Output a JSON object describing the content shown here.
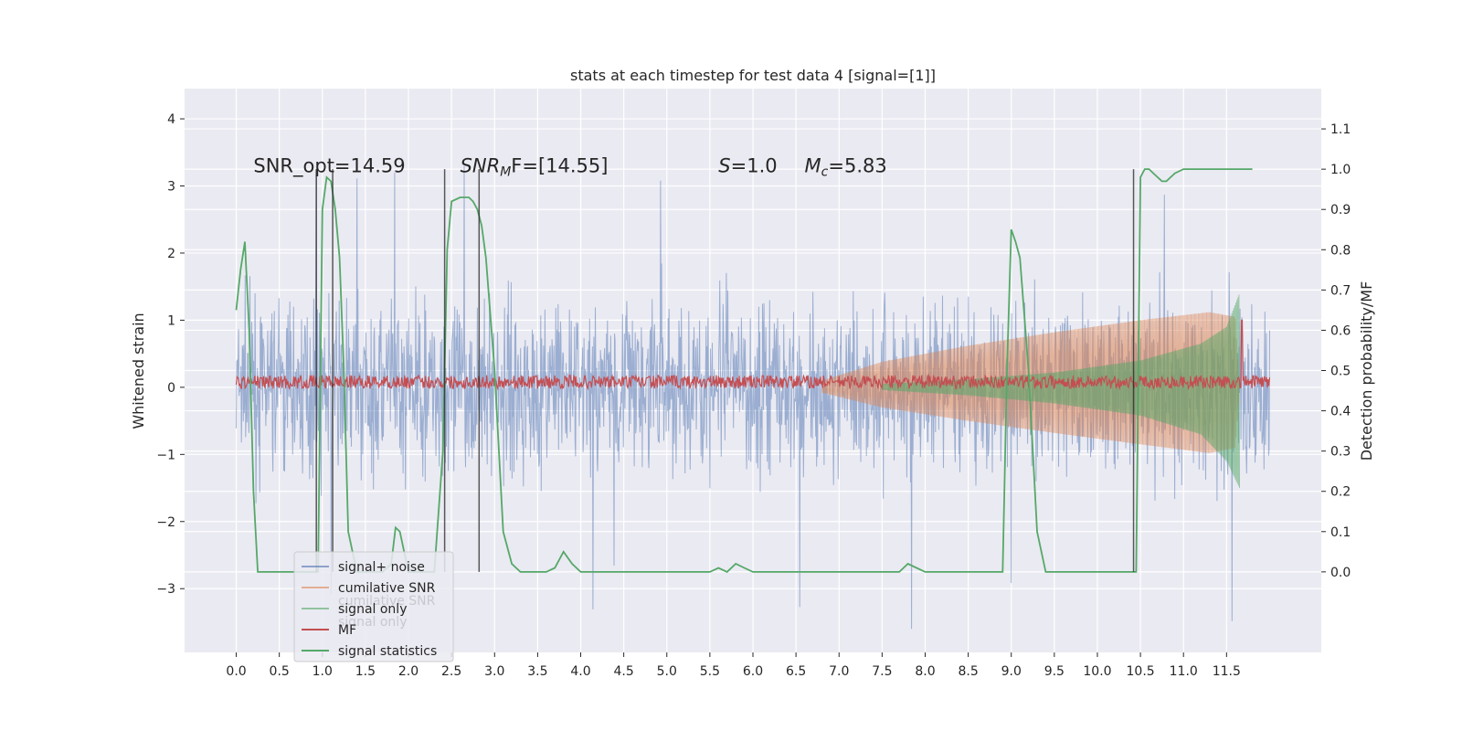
{
  "chart_data": {
    "type": "line",
    "title": "stats at each timestep for test data 4 [signal=[1]]",
    "xlabel": "",
    "ylabel": "Whitened strain",
    "ylabel_right": "Detection probability/MF",
    "xlim": [
      -0.6,
      12.6
    ],
    "ylim": [
      -3.95,
      4.45
    ],
    "ylim_right": [
      -0.2,
      1.2
    ],
    "x_ticks": [
      "0.0",
      "0.5",
      "1.0",
      "1.5",
      "2.0",
      "2.5",
      "3.0",
      "3.5",
      "4.0",
      "4.5",
      "5.0",
      "5.5",
      "6.0",
      "6.5",
      "7.0",
      "7.5",
      "8.0",
      "8.5",
      "9.0",
      "9.5",
      "10.0",
      "10.5",
      "11.0",
      "11.5"
    ],
    "y_ticks_left": [
      "−3",
      "−2",
      "−1",
      "0",
      "1",
      "2",
      "3",
      "4"
    ],
    "y_ticks_right": [
      "0.0",
      "0.1",
      "0.2",
      "0.3",
      "0.4",
      "0.5",
      "0.6",
      "0.7",
      "0.8",
      "0.9",
      "1.0",
      "1.1"
    ],
    "grid": true,
    "annotations": [
      {
        "text": "SNR_opt=14.59",
        "x": 0.2,
        "y": 3.3
      },
      {
        "text": "SNR",
        "sub": "M",
        "rest": "F=[14.55]",
        "x": 2.6,
        "y": 3.3
      },
      {
        "text": "S",
        "rest": "=1.0",
        "x": 5.6,
        "y": 3.3
      },
      {
        "text": "M",
        "sub": "c",
        "rest": "=5.83",
        "x": 6.6,
        "y": 3.3
      }
    ],
    "legend": {
      "placement": "lower-left",
      "entries": [
        {
          "label": "signal+ noise",
          "color": "#4c72b0"
        },
        {
          "label": "cumilative SNR",
          "color": "#dd8452"
        },
        {
          "label": "signal only",
          "color": "#55a868"
        },
        {
          "label": "MF",
          "color": "#c44e52"
        },
        {
          "label": "signal statistics",
          "color": "#55a868"
        }
      ],
      "ghost_labels": [
        "cumilative SNR",
        "signal only"
      ]
    },
    "series": [
      {
        "name": "signal+ noise",
        "color": "#4c72b0",
        "kind": "noise",
        "x_range": [
          0.0,
          12.0
        ],
        "envelope": 1.5,
        "peak_max": 4.1,
        "peak_min": -3.6
      },
      {
        "name": "cumilative SNR",
        "color": "#dd8452",
        "kind": "chirp-envelope",
        "x_start": 6.8,
        "x_end": 11.65,
        "upper": [
          [
            6.8,
            0.1
          ],
          [
            7.5,
            0.38
          ],
          [
            8.5,
            0.62
          ],
          [
            9.5,
            0.82
          ],
          [
            10.5,
            1.0
          ],
          [
            11.3,
            1.12
          ],
          [
            11.6,
            1.05
          ],
          [
            11.65,
            0.0
          ]
        ],
        "lower": [
          [
            6.8,
            -0.08
          ],
          [
            7.5,
            -0.3
          ],
          [
            8.5,
            -0.5
          ],
          [
            9.5,
            -0.68
          ],
          [
            10.5,
            -0.85
          ],
          [
            11.3,
            -0.98
          ],
          [
            11.6,
            -0.9
          ],
          [
            11.65,
            0.0
          ]
        ]
      },
      {
        "name": "signal only",
        "color": "#55a868",
        "kind": "chirp-envelope",
        "x_start": 7.5,
        "x_end": 11.65,
        "upper": [
          [
            7.5,
            0.05
          ],
          [
            8.5,
            0.12
          ],
          [
            9.5,
            0.22
          ],
          [
            10.5,
            0.4
          ],
          [
            11.2,
            0.65
          ],
          [
            11.5,
            0.9
          ],
          [
            11.65,
            1.4
          ],
          [
            11.66,
            0.0
          ]
        ],
        "lower": [
          [
            7.5,
            -0.04
          ],
          [
            8.5,
            -0.12
          ],
          [
            9.5,
            -0.24
          ],
          [
            10.5,
            -0.42
          ],
          [
            11.2,
            -0.7
          ],
          [
            11.5,
            -1.1
          ],
          [
            11.65,
            -1.5
          ],
          [
            11.66,
            0.0
          ]
        ]
      },
      {
        "name": "MF",
        "color": "#c44e52",
        "kind": "noise-band",
        "x_range": [
          0.0,
          12.0
        ],
        "center": 0.08,
        "amp": 0.1,
        "spike_x": 11.68,
        "spike_y": 1.0
      },
      {
        "name": "signal statistics",
        "color": "#55a868",
        "axis": "right",
        "kind": "line",
        "x": [
          0.0,
          0.05,
          0.1,
          0.15,
          0.2,
          0.25,
          0.3,
          0.4,
          0.5,
          0.6,
          0.7,
          0.8,
          0.9,
          0.95,
          1.0,
          1.05,
          1.1,
          1.15,
          1.2,
          1.25,
          1.3,
          1.4,
          1.5,
          1.6,
          1.7,
          1.8,
          1.85,
          1.9,
          1.95,
          2.0,
          2.1,
          2.2,
          2.3,
          2.4,
          2.45,
          2.5,
          2.6,
          2.7,
          2.75,
          2.8,
          2.85,
          2.9,
          3.0,
          3.1,
          3.2,
          3.3,
          3.4,
          3.5,
          3.6,
          3.7,
          3.8,
          3.9,
          4.0,
          4.5,
          5.0,
          5.5,
          5.6,
          5.7,
          5.8,
          5.9,
          6.0,
          6.5,
          6.7,
          6.8,
          7.0,
          7.5,
          7.7,
          7.8,
          7.9,
          8.0,
          8.5,
          8.8,
          8.9,
          8.95,
          9.0,
          9.05,
          9.1,
          9.2,
          9.3,
          9.4,
          9.5,
          10.0,
          10.4,
          10.45,
          10.5,
          10.55,
          10.6,
          10.65,
          10.7,
          10.75,
          10.8,
          10.9,
          11.0,
          11.2,
          11.5,
          11.8
        ],
        "y": [
          0.65,
          0.75,
          0.82,
          0.6,
          0.2,
          0.0,
          0.0,
          0.0,
          0.0,
          0.0,
          0.0,
          0.0,
          0.0,
          0.0,
          0.9,
          0.98,
          0.97,
          0.9,
          0.78,
          0.5,
          0.1,
          0.0,
          0.0,
          0.0,
          0.0,
          0.02,
          0.11,
          0.1,
          0.05,
          0.0,
          0.0,
          0.0,
          0.0,
          0.3,
          0.8,
          0.92,
          0.93,
          0.93,
          0.92,
          0.9,
          0.86,
          0.78,
          0.5,
          0.1,
          0.02,
          0.0,
          0.0,
          0.0,
          0.0,
          0.01,
          0.05,
          0.02,
          0.0,
          0.0,
          0.0,
          0.0,
          0.01,
          0.0,
          0.02,
          0.01,
          0.0,
          0.0,
          0.0,
          0.0,
          0.0,
          0.0,
          0.0,
          0.02,
          0.01,
          0.0,
          0.0,
          0.0,
          0.0,
          0.5,
          0.85,
          0.82,
          0.78,
          0.5,
          0.1,
          0.0,
          0.0,
          0.0,
          0.0,
          0.0,
          0.98,
          1.0,
          1.0,
          0.99,
          0.98,
          0.97,
          0.97,
          0.99,
          1.0,
          1.0,
          1.0,
          1.0
        ]
      },
      {
        "name": "",
        "color": "#262626",
        "kind": "vlines",
        "axis": "right",
        "x": [
          0.93,
          1.12,
          2.42,
          2.82,
          10.42
        ],
        "y0": 0.0,
        "y1": 1.0
      }
    ]
  }
}
